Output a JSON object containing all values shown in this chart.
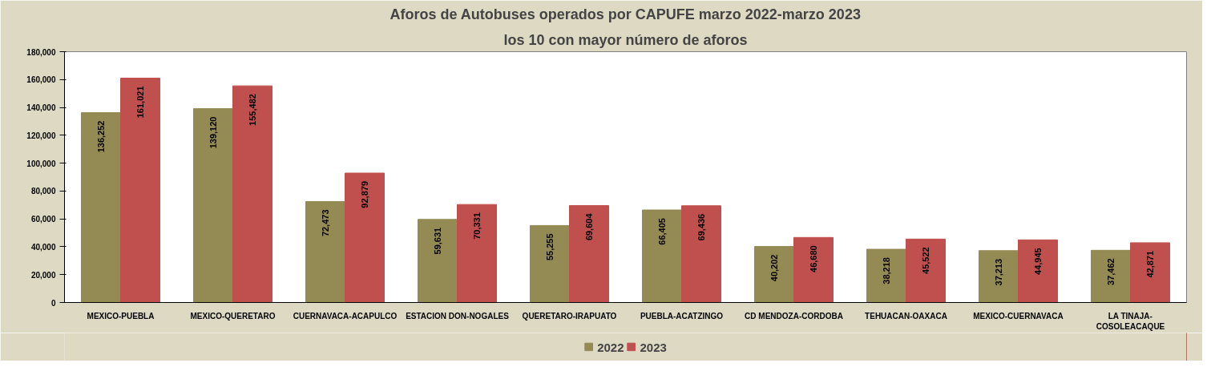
{
  "chart_data": {
    "type": "bar",
    "title": "Aforos de Autobuses operados por CAPUFE marzo 2022-marzo 2023",
    "subtitle": "los 10 con mayor número de aforos",
    "categories": [
      "MEXICO-PUEBLA",
      "MEXICO-QUERETARO",
      "CUERNAVACA-ACAPULCO",
      "ESTACION DON-NOGALES",
      "QUERETARO-IRAPUATO",
      "PUEBLA-ACATZINGO",
      "CD MENDOZA-CORDOBA",
      "TEHUACAN-OAXACA",
      "MEXICO-CUERNAVACA",
      "LA TINAJA-COSOLEACAQUE"
    ],
    "series": [
      {
        "name": "2022",
        "color": "#948a54",
        "values": [
          136252,
          139120,
          72473,
          59631,
          55255,
          66405,
          40202,
          38218,
          37213,
          37462
        ],
        "value_labels": [
          "136,252",
          "139,120",
          "72,473",
          "59,631",
          "55,255",
          "66,405",
          "40,202",
          "38,218",
          "37,213",
          "37,462"
        ]
      },
      {
        "name": "2023",
        "color": "#c0504d",
        "values": [
          161021,
          155482,
          92879,
          70331,
          69604,
          69436,
          46680,
          45522,
          44945,
          42871
        ],
        "value_labels": [
          "161,021",
          "155,482",
          "92,879",
          "70,331",
          "69,604",
          "69,436",
          "46,680",
          "45,522",
          "44,945",
          "42,871"
        ]
      }
    ],
    "ylim": [
      0,
      180000
    ],
    "yticks": [
      {
        "value": 0,
        "label": "0"
      },
      {
        "value": 20000,
        "label": "20,000"
      },
      {
        "value": 40000,
        "label": "40,000"
      },
      {
        "value": 60000,
        "label": "60,000"
      },
      {
        "value": 80000,
        "label": "80,000"
      },
      {
        "value": 100000,
        "label": "100,000"
      },
      {
        "value": 120000,
        "label": "120,000"
      },
      {
        "value": 140000,
        "label": "140,000"
      },
      {
        "value": 160000,
        "label": "160,000"
      },
      {
        "value": 180000,
        "label": "180,000"
      }
    ],
    "legend": "bottom"
  }
}
